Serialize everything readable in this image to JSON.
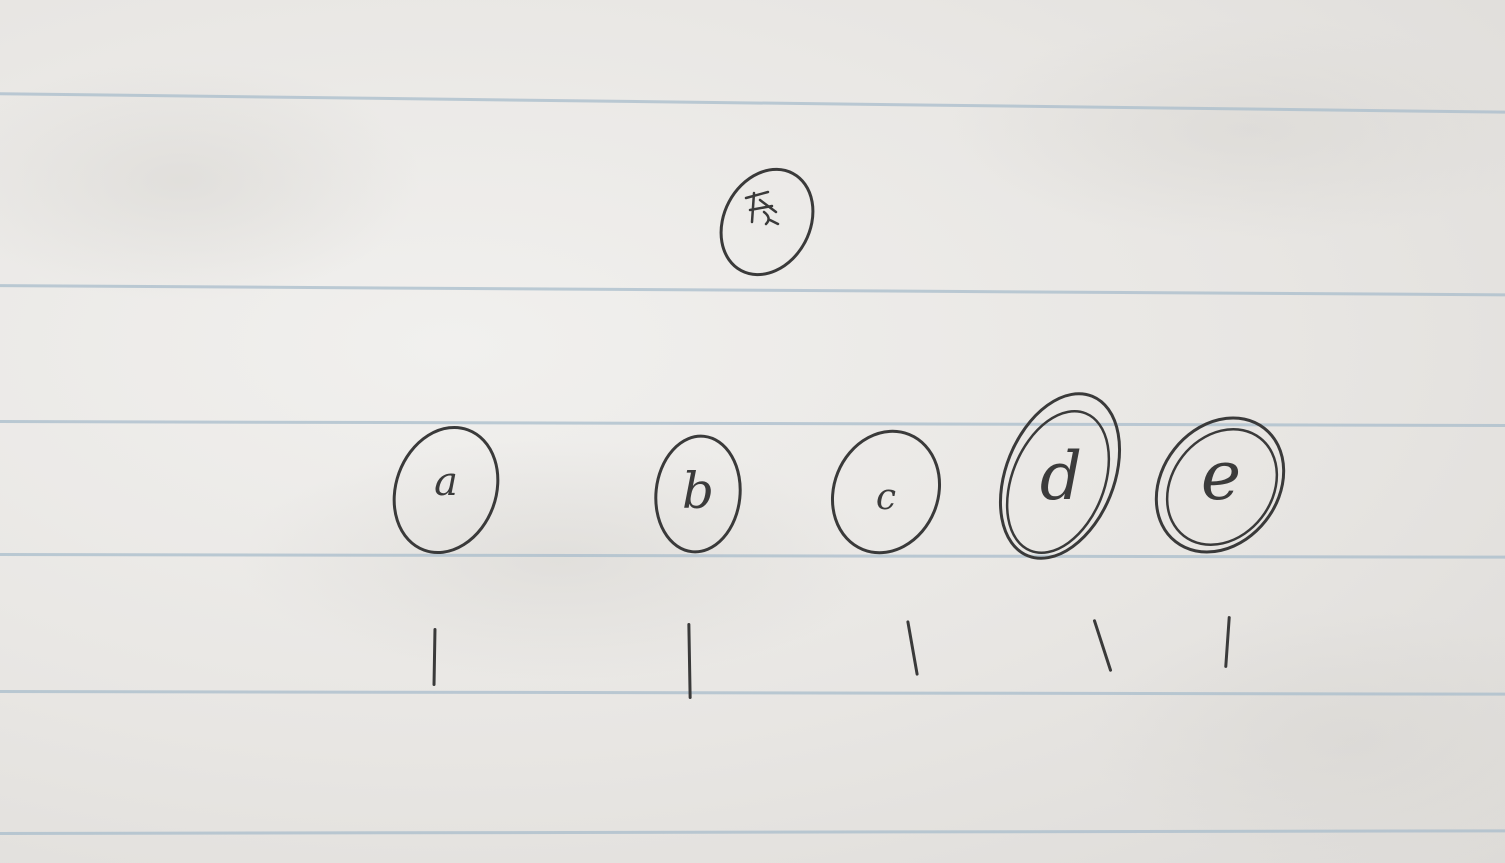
{
  "diagram": {
    "root": {
      "label": ""
    },
    "children": [
      {
        "label": "a",
        "tally": "|"
      },
      {
        "label": "b",
        "tally": "|"
      },
      {
        "label": "c",
        "tally": "|"
      },
      {
        "label": "d",
        "tally": "|"
      },
      {
        "label": "e",
        "tally": "|"
      }
    ]
  },
  "colors": {
    "ink": "#3a3a3a",
    "paper": "#ecebe8",
    "rule": "#a8bccb"
  }
}
